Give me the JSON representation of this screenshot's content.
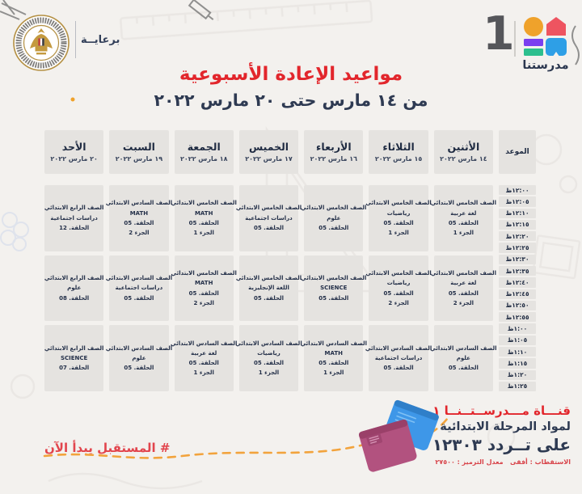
{
  "header": {
    "sponsor_label": "برعايــة",
    "channel_number": "1",
    "channel_name": "مدرستنا",
    "title": "مواعيد الإعادة الأسبوعية",
    "date_range": "من ١٤ مارس حتى ٢٠ مارس ٢٠٢٢"
  },
  "schedule": {
    "time_header": "الموعد",
    "time_slots": [
      "١٢:٠٠ظ",
      "١٢:٠٥ظ",
      "١٢:١٠ظ",
      "١٢:١٥ظ",
      "١٢:٢٠ظ",
      "١٢:٢٥ظ",
      "١٢:٣٠ظ",
      "١٢:٣٥ظ",
      "١٢:٤٠ظ",
      "١٢:٤٥ظ",
      "١٢:٥٠ظ",
      "١٢:٥٥ظ",
      "١:٠٠ظ",
      "١:٠٥ظ",
      "١:١٠ظ",
      "١:١٥ظ",
      "١:٢٠ظ",
      "١:٢٥ظ"
    ],
    "days": [
      {
        "name": "الأثنين",
        "date": "١٤ مارس ٢٠٢٢"
      },
      {
        "name": "الثلاثاء",
        "date": "١٥ مارس ٢٠٢٢"
      },
      {
        "name": "الأربعاء",
        "date": "١٦ مارس ٢٠٢٢"
      },
      {
        "name": "الخميس",
        "date": "١٧ مارس ٢٠٢٢"
      },
      {
        "name": "الجمعة",
        "date": "١٨ مارس ٢٠٢٢"
      },
      {
        "name": "السبت",
        "date": "١٩ مارس ٢٠٢٢"
      },
      {
        "name": "الأحد",
        "date": "٢٠ مارس ٢٠٢٢"
      }
    ],
    "rows": [
      [
        {
          "grade": "الصف الخامس الابتدائي",
          "subject": "لغة عربية",
          "episode": "الحلقة. 05",
          "part": "الجزء 1"
        },
        {
          "grade": "الصف الخامس الابتدائي",
          "subject": "رياضيات",
          "episode": "الحلقة. 05",
          "part": "الجزء 1"
        },
        {
          "grade": "الصف الخامس الابتدائي",
          "subject": "علوم",
          "episode": "الحلقة. 05",
          "part": ""
        },
        {
          "grade": "الصف الخامس الابتدائي",
          "subject": "دراسات اجتماعية",
          "episode": "الحلقة. 05",
          "part": ""
        },
        {
          "grade": "الصف الخامس الابتدائي",
          "subject": "MATH",
          "episode": "الحلقة. 05",
          "part": "الجزء 1"
        },
        {
          "grade": "الصف السادس الابتدائي",
          "subject": "MATH",
          "episode": "الحلقة. 05",
          "part": "الجزء 2"
        },
        {
          "grade": "الصف الرابع الابتدائي",
          "subject": "دراسات اجتماعية",
          "episode": "الحلقة. 12",
          "part": ""
        }
      ],
      [
        {
          "grade": "الصف الخامس الابتدائي",
          "subject": "لغة عربية",
          "episode": "الحلقة. 05",
          "part": "الجزء 2"
        },
        {
          "grade": "الصف الخامس الابتدائي",
          "subject": "رياضيات",
          "episode": "الحلقة. 05",
          "part": "الجزء 2"
        },
        {
          "grade": "الصف الخامس الابتدائي",
          "subject": "SCIENCE",
          "episode": "الحلقة. 05",
          "part": ""
        },
        {
          "grade": "الصف الخامس الابتدائي",
          "subject": "اللغة الإنجليزية",
          "episode": "الحلقة. 05",
          "part": ""
        },
        {
          "grade": "الصف الخامس الابتدائي",
          "subject": "MATH",
          "episode": "الحلقة. 05",
          "part": "الجزء 2"
        },
        {
          "grade": "الصف السادس الابتدائي",
          "subject": "دراسات اجتماعية",
          "episode": "الحلقة. 05",
          "part": ""
        },
        {
          "grade": "الصف الرابع الابتدائي",
          "subject": "علوم",
          "episode": "الحلقة. 08",
          "part": ""
        }
      ],
      [
        {
          "grade": "الصف السادس الابتدائي",
          "subject": "علوم",
          "episode": "الحلقة. 05",
          "part": ""
        },
        {
          "grade": "الصف السادس الابتدائي",
          "subject": "دراسات اجتماعية",
          "episode": "الحلقة. 05",
          "part": ""
        },
        {
          "grade": "الصف السادس الابتدائي",
          "subject": "MATH",
          "episode": "الحلقة. 05",
          "part": "الجزء 1"
        },
        {
          "grade": "الصف السادس الابتدائي",
          "subject": "رياضيات",
          "episode": "الحلقة. 05",
          "part": "الجزء 1"
        },
        {
          "grade": "الصف السادس الابتدائي",
          "subject": "لغة عربية",
          "episode": "الحلقة. 05",
          "part": "الجزء 1"
        },
        {
          "grade": "الصف السادس الابتدائي",
          "subject": "علوم",
          "episode": "الحلقة. 05",
          "part": ""
        },
        {
          "grade": "الصف الرابع الابتدائي",
          "subject": "SCIENCE",
          "episode": "الحلقة. 07",
          "part": ""
        }
      ]
    ]
  },
  "footer": {
    "hashtag": "# المستقبل يبدأ الآن",
    "channel_line1": "قنـــاة مـــدرســتــنــا ١",
    "channel_line2": "لمواد المرحلة الابتدائية",
    "channel_line3": "على تــردد ١٢٣٠٣",
    "channel_line4": "الاستقطاب : أفقى   معدل الترميز : ٢٧٥٠٠"
  },
  "colors": {
    "accent_red": "#e2262c",
    "navy": "#2e3a52",
    "cell_bg": "#e5e3e0",
    "page_bg": "#f3f1ee",
    "dash_orange": "#f2a33c",
    "logo_orange": "#efa22b",
    "logo_red": "#ee5460",
    "logo_purple": "#7a3ff0",
    "logo_green": "#2cbf8e",
    "logo_blue": "#2e9fe6",
    "book_blue": "#3e97e8",
    "book_pink": "#b2527f"
  }
}
